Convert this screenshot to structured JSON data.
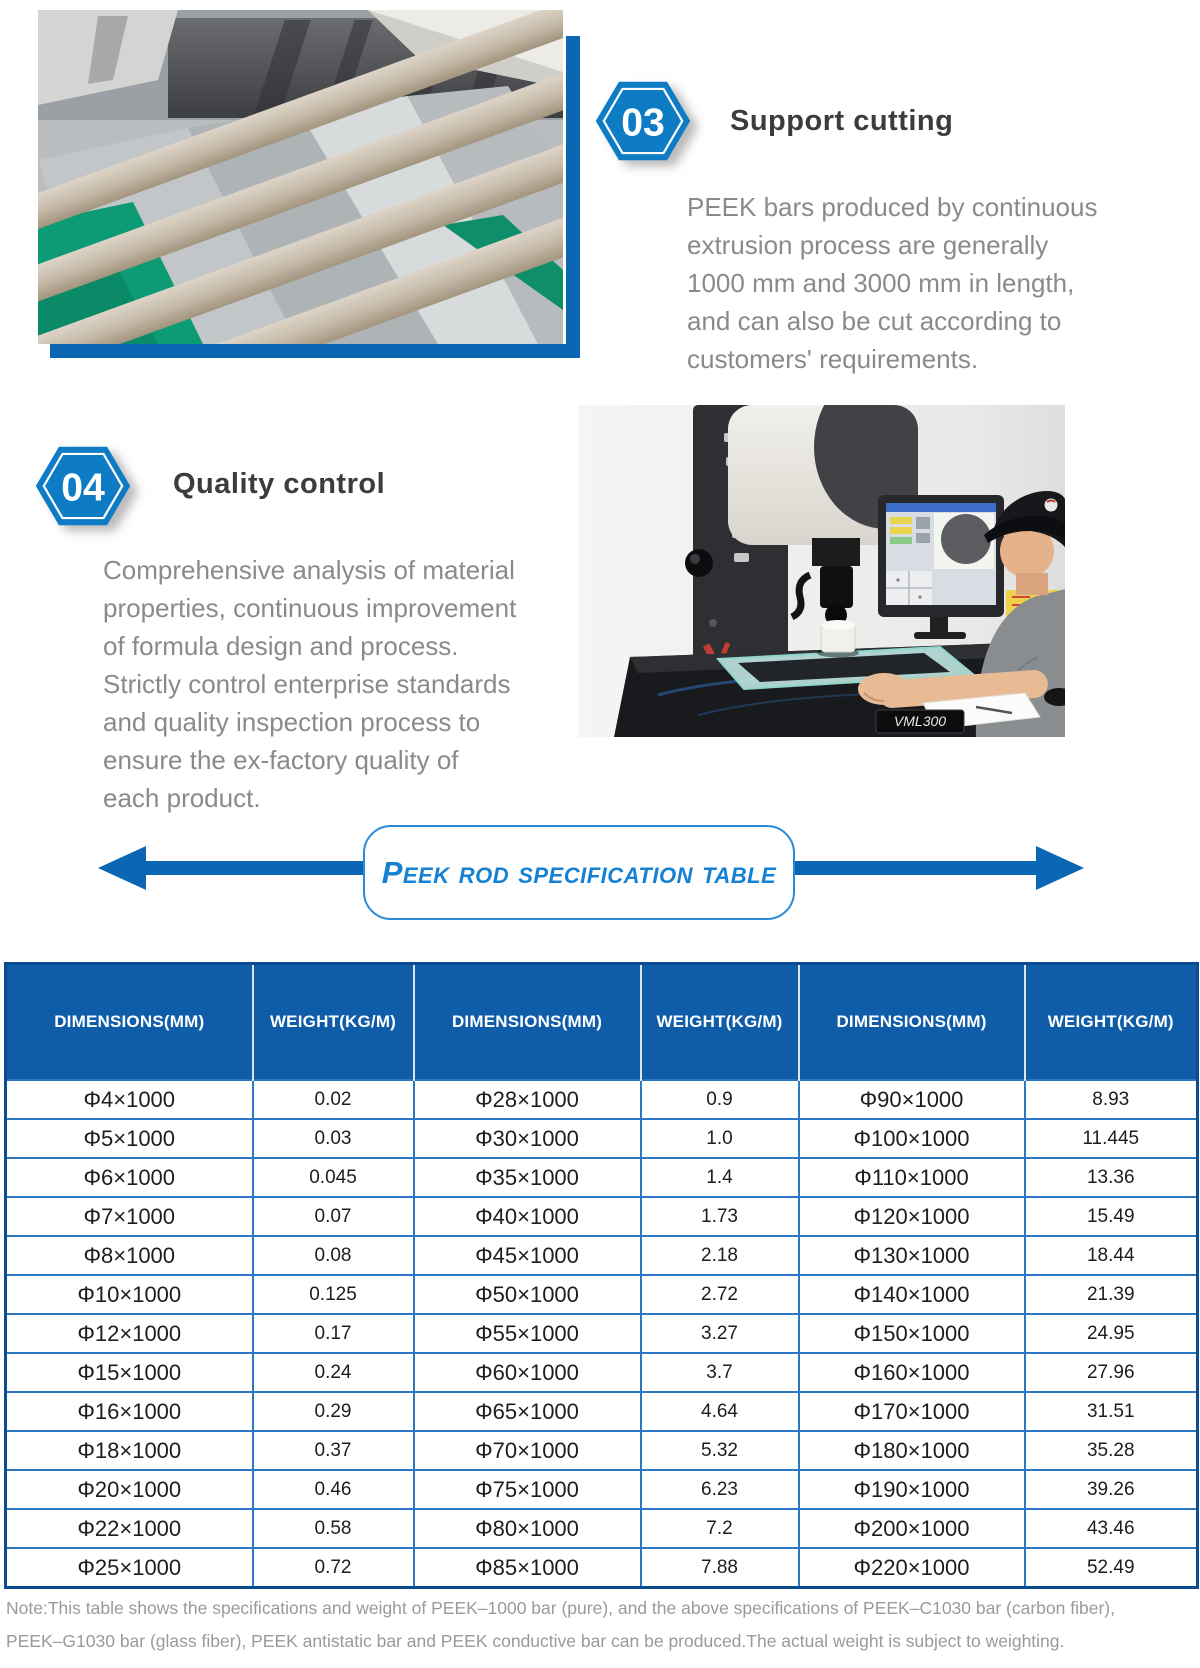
{
  "colors": {
    "accent_blue": "#0e7cc4",
    "banner_blue": "#0b67b4",
    "banner_text_blue": "#1581d3",
    "table_header_bg": "#0f5da8",
    "grid_blue": "#2b77c2",
    "title_dark": "#3c3c3c",
    "body_gray": "#8a8a8a",
    "note_gray": "#9a9a9a"
  },
  "sections": [
    {
      "number": "03",
      "title": "Support cutting",
      "body_lines": [
        "PEEK bars produced by continuous",
        "extrusion process are generally",
        "1000 mm and 3000 mm in length,",
        "and can also be cut according to",
        "customers' requirements."
      ]
    },
    {
      "number": "04",
      "title": "Quality control",
      "body_lines": [
        "Comprehensive analysis of material",
        "properties, continuous improvement",
        "of formula design and process.",
        "Strictly control enterprise standards",
        "and quality inspection process to",
        "ensure the ex-factory quality of",
        "each product."
      ]
    }
  ],
  "photos": [
    {
      "name": "peek-rods-photo",
      "alt": "PEEK rods on extrusion support cutting line"
    },
    {
      "name": "quality-control-photo",
      "alt": "Operator using video measuring machine",
      "machine_label": "VML300"
    }
  ],
  "banner": {
    "title": "Peek rod specification table"
  },
  "table": {
    "headers": [
      "DIMENSIONS(MM)",
      "WEIGHT(KG/M)",
      "DIMENSIONS(MM)",
      "WEIGHT(KG/M)",
      "DIMENSIONS(MM)",
      "WEIGHT(KG/M)"
    ],
    "rows": [
      [
        "Φ4×1000",
        "0.02",
        "Φ28×1000",
        "0.9",
        "Φ90×1000",
        "8.93"
      ],
      [
        "Φ5×1000",
        "0.03",
        "Φ30×1000",
        "1.0",
        "Φ100×1000",
        "11.445"
      ],
      [
        "Φ6×1000",
        "0.045",
        "Φ35×1000",
        "1.4",
        "Φ110×1000",
        "13.36"
      ],
      [
        "Φ7×1000",
        "0.07",
        "Φ40×1000",
        "1.73",
        "Φ120×1000",
        "15.49"
      ],
      [
        "Φ8×1000",
        "0.08",
        "Φ45×1000",
        "2.18",
        "Φ130×1000",
        "18.44"
      ],
      [
        "Φ10×1000",
        "0.125",
        "Φ50×1000",
        "2.72",
        "Φ140×1000",
        "21.39"
      ],
      [
        "Φ12×1000",
        "0.17",
        "Φ55×1000",
        "3.27",
        "Φ150×1000",
        "24.95"
      ],
      [
        "Φ15×1000",
        "0.24",
        "Φ60×1000",
        "3.7",
        "Φ160×1000",
        "27.96"
      ],
      [
        "Φ16×1000",
        "0.29",
        "Φ65×1000",
        "4.64",
        "Φ170×1000",
        "31.51"
      ],
      [
        "Φ18×1000",
        "0.37",
        "Φ70×1000",
        "5.32",
        "Φ180×1000",
        "35.28"
      ],
      [
        "Φ20×1000",
        "0.46",
        "Φ75×1000",
        "6.23",
        "Φ190×1000",
        "39.26"
      ],
      [
        "Φ22×1000",
        "0.58",
        "Φ80×1000",
        "7.2",
        "Φ200×1000",
        "43.46"
      ],
      [
        "Φ25×1000",
        "0.72",
        "Φ85×1000",
        "7.88",
        "Φ220×1000",
        "52.49"
      ]
    ]
  },
  "note_lines": [
    "Note:This table shows the specifications and weight of PEEK–1000 bar (pure), and the above specifications of PEEK–C1030 bar (carbon fiber),",
    "PEEK–G1030 bar (glass fiber), PEEK antistatic bar and PEEK conductive bar can be produced.The actual weight is subject to weighting."
  ]
}
